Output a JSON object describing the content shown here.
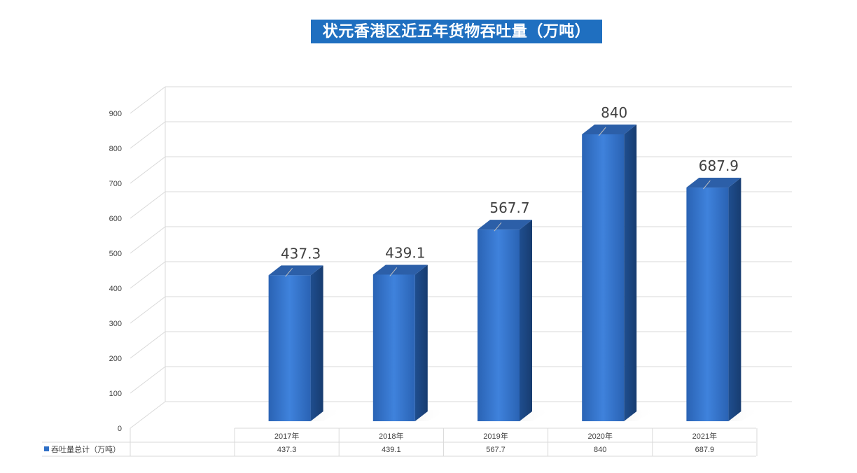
{
  "chart_data": {
    "type": "bar",
    "title": "状元香港区近五年货物吞吐量（万吨）",
    "categories": [
      "2017年",
      "2018年",
      "2019年",
      "2020年",
      "2021年"
    ],
    "series": [
      {
        "name": "吞吐量总计（万吨）",
        "values": [
          437.3,
          439.1,
          567.7,
          840,
          687.9
        ],
        "color": "#2e6fc6"
      }
    ],
    "data_labels": [
      "437.3",
      "439.1",
      "567.7",
      "840",
      "687.9"
    ],
    "table_values": [
      "437.3",
      "439.1",
      "567.7",
      "840",
      "687.9"
    ],
    "ylim": [
      0,
      900
    ],
    "yticks": [
      "0",
      "100",
      "200",
      "300",
      "400",
      "500",
      "600",
      "700",
      "800",
      "900"
    ],
    "grid": true,
    "three_d": true,
    "legend_placement": "data-table-left"
  }
}
